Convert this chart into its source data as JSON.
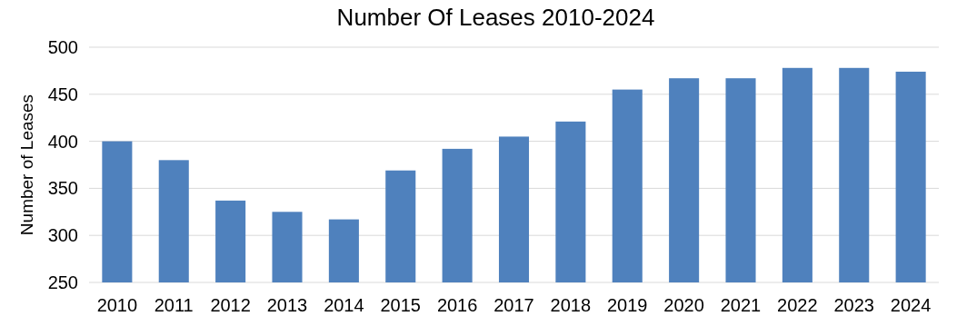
{
  "chart_data": {
    "type": "bar",
    "title": "Number Of Leases 2010-2024",
    "ylabel": "Number of Leases",
    "categories": [
      "2010",
      "2011",
      "2012",
      "2013",
      "2014",
      "2015",
      "2016",
      "2017",
      "2018",
      "2019",
      "2020",
      "2021",
      "2022",
      "2023",
      "2024"
    ],
    "values": [
      400,
      380,
      337,
      325,
      317,
      369,
      392,
      405,
      421,
      455,
      467,
      467,
      478,
      478,
      474
    ],
    "color": "#4f81bd",
    "ylim": [
      250,
      500
    ],
    "yticks": [
      250,
      300,
      350,
      400,
      450,
      500
    ],
    "grid": "y"
  }
}
